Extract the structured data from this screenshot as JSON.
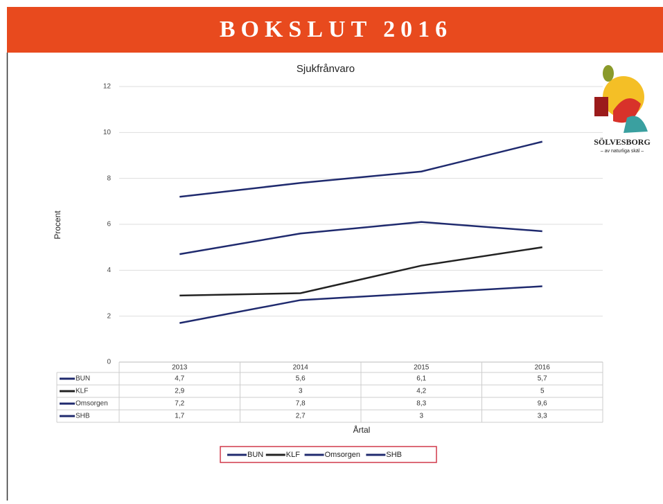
{
  "header": {
    "title": "BOKSLUT 2016"
  },
  "logo": {
    "name": "SÖLVESBORG",
    "tagline": "– av naturliga skäl –"
  },
  "chart_data": {
    "type": "line",
    "title": "Sjukfrånvaro",
    "y_label": "Procent",
    "x_label": "Årtal",
    "categories": [
      "2013",
      "2014",
      "2015",
      "2016"
    ],
    "series": [
      {
        "name": "BUN",
        "color": "#1f2a6e",
        "values": [
          4.7,
          5.6,
          6.1,
          5.7
        ],
        "value_labels": [
          "4,7",
          "5,6",
          "6,1",
          "5,7"
        ]
      },
      {
        "name": "KLF",
        "color": "#222222",
        "values": [
          2.9,
          3,
          4.2,
          5
        ],
        "value_labels": [
          "2,9",
          "3",
          "4,2",
          "5"
        ]
      },
      {
        "name": "Omsorgen",
        "color": "#1f2a6e",
        "values": [
          7.2,
          7.8,
          8.3,
          9.6
        ],
        "value_labels": [
          "7,2",
          "7,8",
          "8,3",
          "9,6"
        ]
      },
      {
        "name": "SHB",
        "color": "#1f2a6e",
        "values": [
          1.7,
          2.7,
          3,
          3.3
        ],
        "value_labels": [
          "1,7",
          "2,7",
          "3",
          "3,3"
        ]
      }
    ],
    "ylim": [
      0,
      12
    ],
    "yticks": [
      0,
      2,
      4,
      6,
      8,
      10,
      12
    ],
    "grid": true,
    "legend": "bottom"
  }
}
